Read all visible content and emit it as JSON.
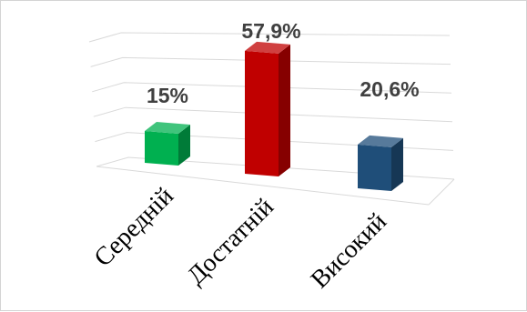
{
  "chart_data": {
    "type": "bar",
    "categories": [
      "Середній",
      "Достатній",
      "Високий"
    ],
    "values": [
      15,
      57.9,
      20.6
    ],
    "data_labels": [
      "15%",
      "57,9%",
      "20,6%"
    ],
    "ylim": [
      0,
      60
    ],
    "grid": true,
    "legend": "none",
    "style": "3d-column",
    "colors": {
      "Середній": "#00b050",
      "Достатній": "#c00000",
      "Високий": "#1f4e79"
    }
  }
}
